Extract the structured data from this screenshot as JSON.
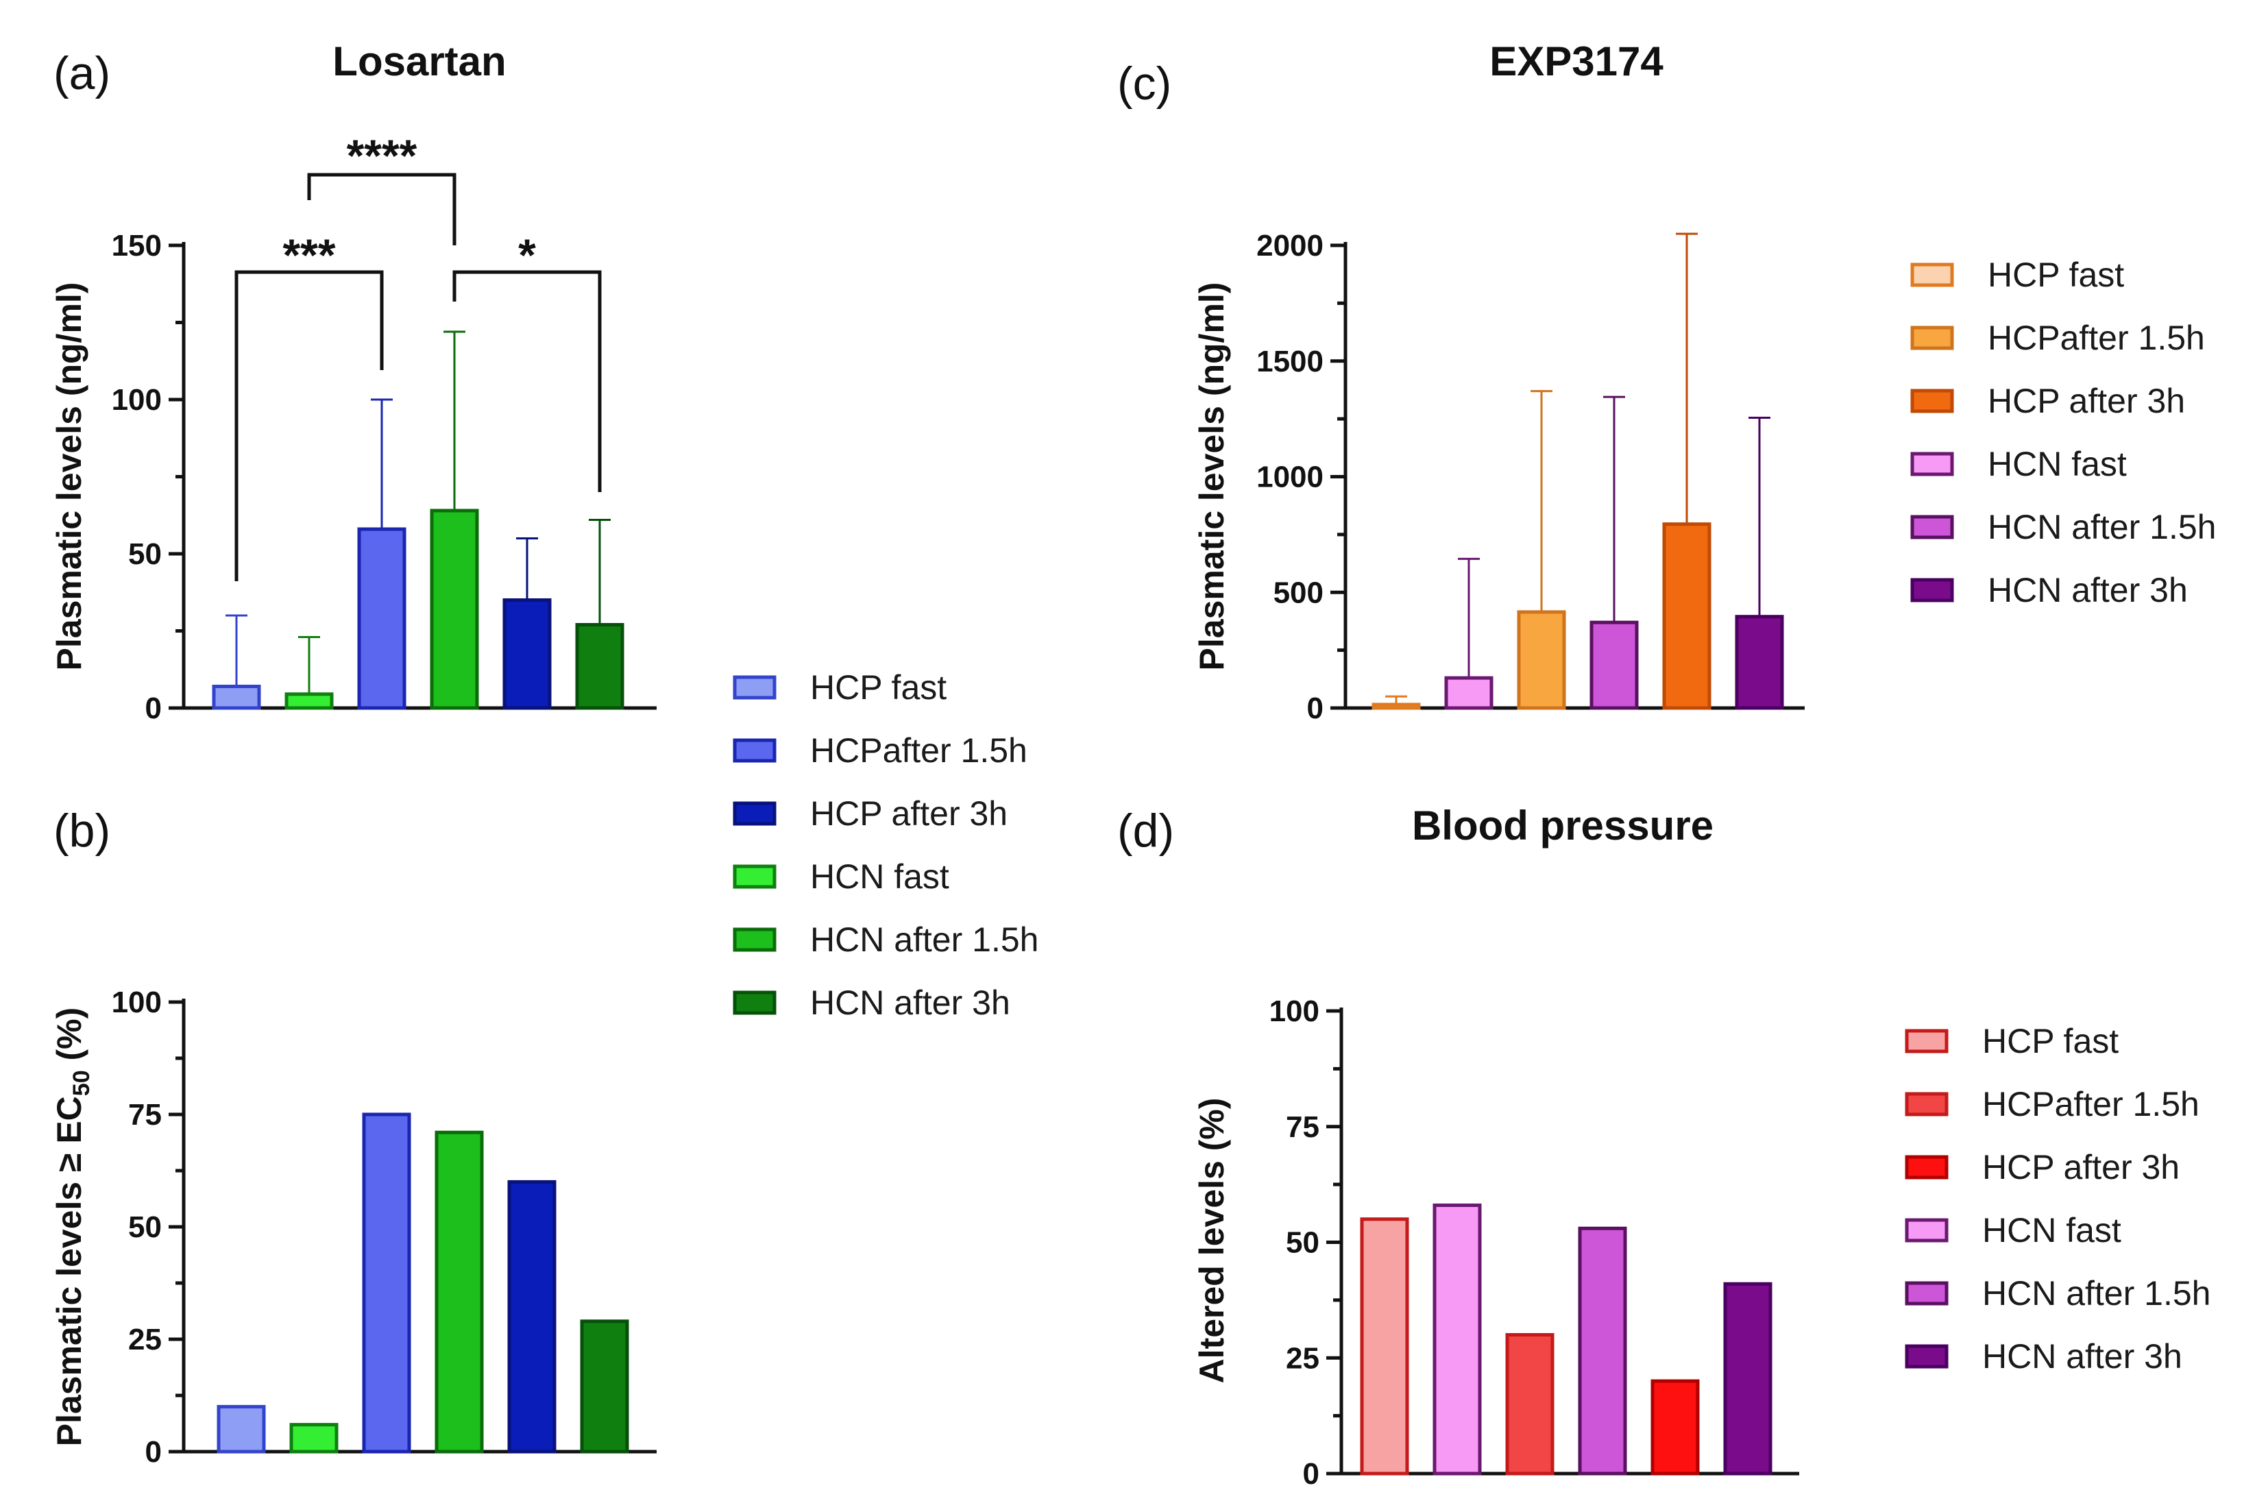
{
  "legend_labels": [
    "HCP fast",
    "HCPafter 1.5h",
    "HCP after 3h",
    "HCN fast",
    "HCN after 1.5h",
    "HCN after 3h"
  ],
  "colors": {
    "los": {
      "HCP fast": "#8f9ef5",
      "HCPafter 1.5h": "#5a67ee",
      "HCP after 3h": "#0a1db8",
      "HCN fast": "#33ee33",
      "HCN after 1.5h": "#1cbf1c",
      "HCN after 3h": "#0f7f0f"
    },
    "los_edge": {
      "HCP fast": "#3344cc",
      "HCPafter 1.5h": "#1a26b0",
      "HCP after 3h": "#08127a",
      "HCN fast": "#0f7f0f",
      "HCN after 1.5h": "#0a6d0a",
      "HCN after 3h": "#06500a"
    },
    "exp_fill": {
      "HCP fast": "#fbd3b0",
      "HCPafter 1.5h": "#f8a640",
      "HCP after 3h": "#f26a0f",
      "HCN fast": "#f79af5",
      "HCN after 1.5h": "#cc55d8",
      "HCN after 3h": "#7a0c8c"
    },
    "exp_edge": {
      "HCP fast": "#e07a20",
      "HCPafter 1.5h": "#d0741c",
      "HCP after 3h": "#c04a05",
      "HCN fast": "#6a1870",
      "HCN after 1.5h": "#5a1060",
      "HCN after 3h": "#4a0060"
    },
    "bp_fill": {
      "HCP fast": "#f7a3a3",
      "HCPafter 1.5h": "#f24545",
      "HCP after 3h": "#ff1010",
      "HCN fast": "#f79af5",
      "HCN after 1.5h": "#cc55d8",
      "HCN after 3h": "#7a0c8c"
    },
    "bp_edge": {
      "HCP fast": "#c41a1a",
      "HCPafter 1.5h": "#c41a1a",
      "HCP after 3h": "#b00000",
      "HCN fast": "#6a1870",
      "HCN after 1.5h": "#5a1060",
      "HCN after 3h": "#4a0060"
    }
  },
  "chart_data": [
    {
      "panel": "(a)",
      "type": "bar",
      "title": "Losartan",
      "ylabel": "Plasmatic levels (ng/ml)",
      "ylim": [
        0,
        150
      ],
      "yticks": [
        0,
        50,
        100,
        150
      ],
      "categories": [
        "HCP fast",
        "HCN fast",
        "HCPafter 1.5h",
        "HCN after 1.5h",
        "HCP after 3h",
        "HCN after 3h"
      ],
      "values": [
        7,
        4.5,
        58,
        64,
        35,
        27
      ],
      "errors": [
        30,
        23,
        100,
        122,
        55,
        61
      ],
      "significance": [
        {
          "label": "***",
          "from": 0,
          "to": 2
        },
        {
          "label": "****",
          "from": 1,
          "to": 3
        },
        {
          "label": "*",
          "from": 3,
          "to": 5
        }
      ]
    },
    {
      "panel": "(b)",
      "type": "bar",
      "title": "",
      "ylabel": "Plasmatic levels ≥ EC50 (%)",
      "ylim": [
        0,
        100
      ],
      "yticks": [
        0,
        25,
        50,
        75,
        100
      ],
      "categories": [
        "HCP fast",
        "HCN fast",
        "HCPafter 1.5h",
        "HCN after 1.5h",
        "HCP after 3h",
        "HCN after 3h"
      ],
      "values": [
        10,
        6,
        75,
        71,
        60,
        29
      ]
    },
    {
      "panel": "(c)",
      "type": "bar",
      "title": "EXP3174",
      "ylabel": "Plasmatic levels (ng/ml)",
      "ylim": [
        0,
        2100
      ],
      "yticks": [
        0,
        500,
        1000,
        1500,
        2000
      ],
      "categories": [
        "HCP fast",
        "HCN fast",
        "HCPafter 1.5h",
        "HCN after 1.5h",
        "HCP after 3h",
        "HCN after 3h"
      ],
      "values": [
        15,
        130,
        415,
        370,
        795,
        395
      ],
      "errors": [
        50,
        645,
        1370,
        1345,
        2050,
        1255
      ]
    },
    {
      "panel": "(d)",
      "type": "bar",
      "title": "Blood pressure",
      "ylabel": "Altered levels (%)",
      "ylim": [
        0,
        100
      ],
      "yticks": [
        0,
        25,
        50,
        75,
        100
      ],
      "categories": [
        "HCP fast",
        "HCN fast",
        "HCPafter 1.5h",
        "HCN after 1.5h",
        "HCP after 3h",
        "HCN after 3h"
      ],
      "values": [
        55,
        58,
        30,
        53,
        20,
        41
      ]
    }
  ]
}
